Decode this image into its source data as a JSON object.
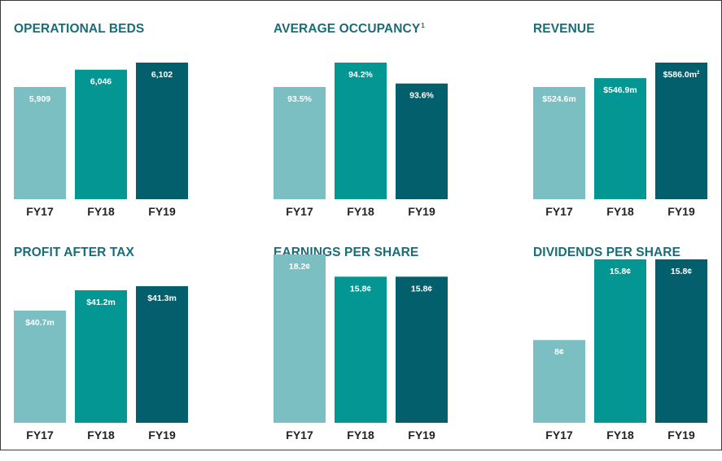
{
  "colors": {
    "title": "#1a6c78",
    "bars": [
      "#7bbfc3",
      "#049692",
      "#035f6b"
    ]
  },
  "chart_data": [
    {
      "type": "bar",
      "title": "OPERATIONAL BEDS",
      "title_sup": "",
      "categories": [
        "FY17",
        "FY18",
        "FY19"
      ],
      "values": [
        5909,
        6046,
        6102
      ],
      "labels": [
        "5,909",
        "6,046",
        "6,102"
      ],
      "label_sups": [
        "",
        "",
        ""
      ]
    },
    {
      "type": "bar",
      "title": "AVERAGE OCCUPANCY",
      "title_sup": "1",
      "categories": [
        "FY17",
        "FY18",
        "FY19"
      ],
      "values": [
        93.5,
        94.2,
        93.6
      ],
      "labels": [
        "93.5%",
        "94.2%",
        "93.6%"
      ],
      "label_sups": [
        "",
        "",
        ""
      ]
    },
    {
      "type": "bar",
      "title": "REVENUE",
      "title_sup": "",
      "categories": [
        "FY17",
        "FY18",
        "FY19"
      ],
      "values": [
        524.6,
        546.9,
        586.0
      ],
      "labels": [
        "$524.6m",
        "$546.9m",
        "$586.0m"
      ],
      "label_sups": [
        "",
        "",
        "2"
      ]
    },
    {
      "type": "bar",
      "title": "PROFIT AFTER TAX",
      "title_sup": "",
      "categories": [
        "FY17",
        "FY18",
        "FY19"
      ],
      "values": [
        40.7,
        41.2,
        41.3
      ],
      "labels": [
        "$40.7m",
        "$41.2m",
        "$41.3m"
      ],
      "label_sups": [
        "",
        "",
        ""
      ]
    },
    {
      "type": "bar",
      "title": "EARNINGS PER SHARE",
      "title_sup": "",
      "categories": [
        "FY17",
        "FY18",
        "FY19"
      ],
      "values": [
        18.2,
        15.8,
        15.8
      ],
      "labels": [
        "18.2¢",
        "15.8¢",
        "15.8¢"
      ],
      "label_sups": [
        "",
        "",
        ""
      ]
    },
    {
      "type": "bar",
      "title": "DIVIDENDS PER SHARE",
      "title_sup": "",
      "categories": [
        "FY17",
        "FY18",
        "FY19"
      ],
      "values": [
        8,
        15.8,
        15.8
      ],
      "labels": [
        "8¢",
        "15.8¢",
        "15.8¢"
      ],
      "label_sups": [
        "",
        "",
        ""
      ]
    }
  ]
}
